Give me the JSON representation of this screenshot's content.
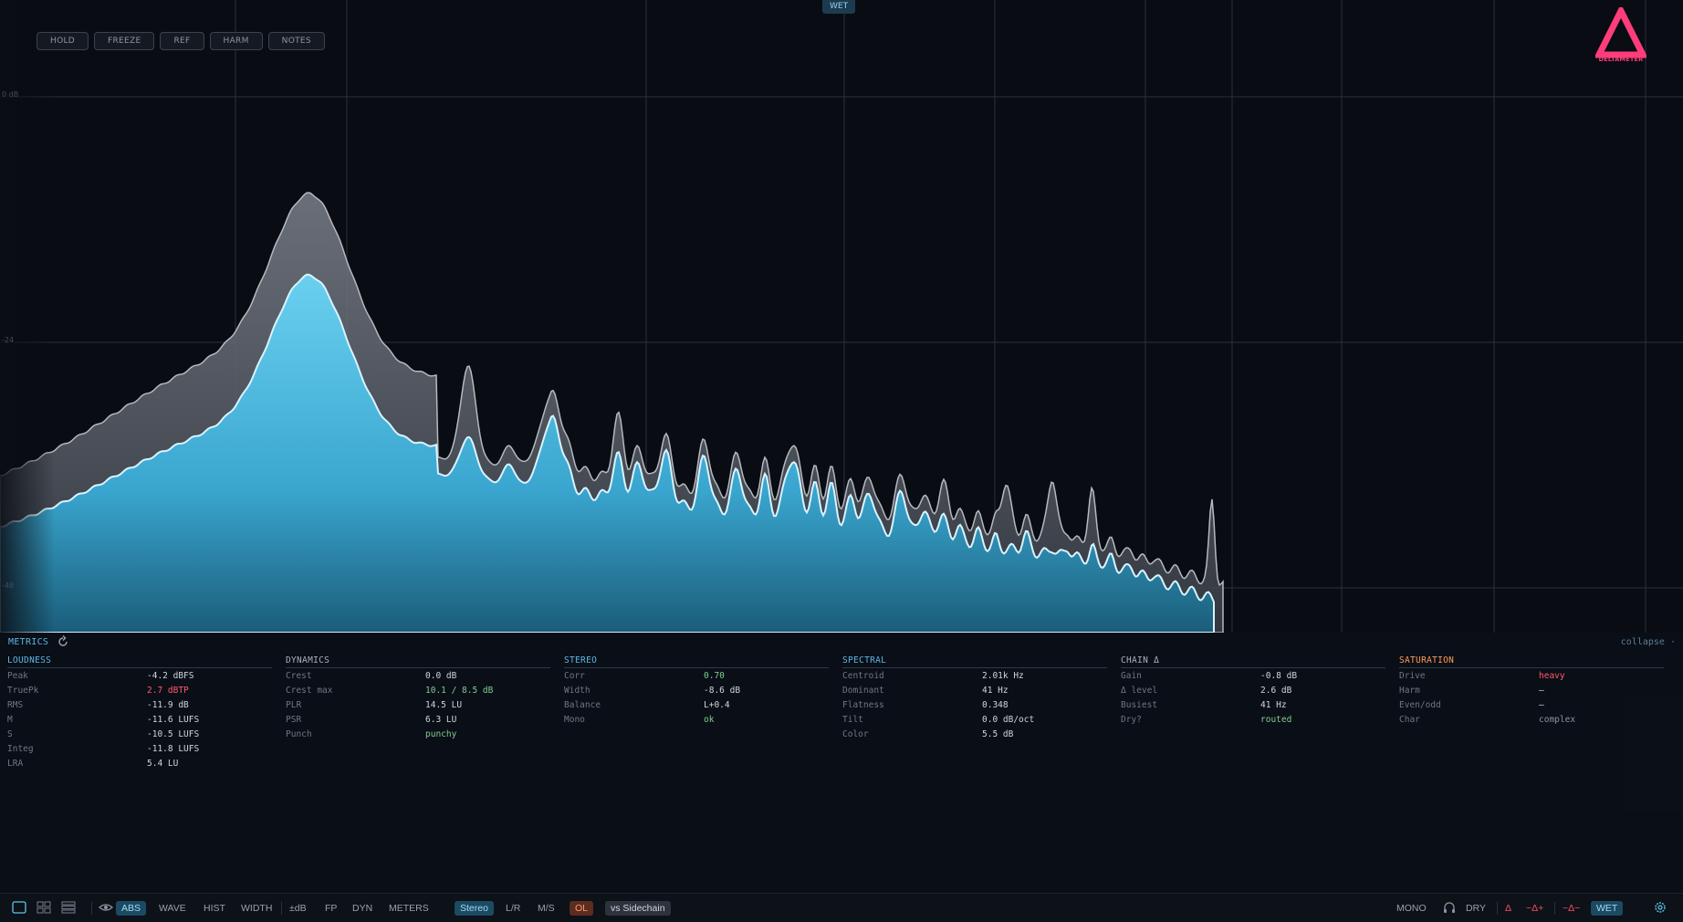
{
  "top_buttons": [
    "HOLD",
    "FREEZE",
    "REF",
    "HARM",
    "NOTES"
  ],
  "wet_badge": "WET",
  "db_labels": [
    "0 dB",
    "-24",
    "-48"
  ],
  "logo_text": "DELTAMETER",
  "metrics": {
    "title": "METRICS",
    "collapse": "collapse ·",
    "sections": [
      {
        "title": "LOUDNESS",
        "color": "#5bb8e6",
        "rows": [
          {
            "k": "Peak",
            "v": "-4.2 dBFS",
            "c": "#d0d6de"
          },
          {
            "k": "TruePk",
            "v": "2.7 dBTP",
            "c": "#ff5a6e"
          },
          {
            "k": "RMS",
            "v": "-11.9 dB",
            "c": "#d0d6de"
          },
          {
            "k": "M",
            "v": "-11.6 LUFS",
            "c": "#d0d6de"
          },
          {
            "k": "S",
            "v": "-10.5 LUFS",
            "c": "#d0d6de"
          },
          {
            "k": "Integ",
            "v": "-11.8 LUFS",
            "c": "#d0d6de"
          },
          {
            "k": "LRA",
            "v": "5.4 LU",
            "c": "#d0d6de"
          }
        ]
      },
      {
        "title": "DYNAMICS",
        "color": "#a8b2bd",
        "rows": [
          {
            "k": "Crest",
            "v": "0.0 dB",
            "c": "#d0d6de"
          },
          {
            "k": "Crest max",
            "v": "10.1 / 8.5 dB",
            "c": "#7fcf8f"
          },
          {
            "k": "PLR",
            "v": "14.5 LU",
            "c": "#d0d6de"
          },
          {
            "k": "PSR",
            "v": "6.3 LU",
            "c": "#d0d6de"
          },
          {
            "k": "Punch",
            "v": "punchy",
            "c": "#7fcf8f"
          }
        ]
      },
      {
        "title": "STEREO",
        "color": "#5bb8e6",
        "rows": [
          {
            "k": "Corr",
            "v": "0.70",
            "c": "#7fcf8f"
          },
          {
            "k": "Width",
            "v": "-8.6 dB",
            "c": "#d0d6de"
          },
          {
            "k": "Balance",
            "v": "L+0.4",
            "c": "#d0d6de"
          },
          {
            "k": "Mono",
            "v": "ok",
            "c": "#7fcf8f"
          }
        ]
      },
      {
        "title": "SPECTRAL",
        "color": "#5bb8e6",
        "rows": [
          {
            "k": "Centroid",
            "v": "2.01k Hz",
            "c": "#d0d6de"
          },
          {
            "k": "Dominant",
            "v": "41 Hz",
            "c": "#d0d6de"
          },
          {
            "k": "Flatness",
            "v": "0.348",
            "c": "#d0d6de"
          },
          {
            "k": "Tilt",
            "v": "0.0 dB/oct",
            "c": "#d0d6de"
          },
          {
            "k": "Color",
            "v": "5.5 dB",
            "c": "#d0d6de"
          }
        ]
      },
      {
        "title": "CHAIN Δ",
        "color": "#a8b2bd",
        "rows": [
          {
            "k": "Gain",
            "v": "-0.8 dB",
            "c": "#d0d6de"
          },
          {
            "k": "Δ level",
            "v": "2.6 dB",
            "c": "#d0d6de"
          },
          {
            "k": "Busiest",
            "v": "41 Hz",
            "c": "#d0d6de"
          },
          {
            "k": "Dry?",
            "v": "routed",
            "c": "#7fcf8f"
          }
        ]
      },
      {
        "title": "SATURATION",
        "color": "#ff9a5a",
        "rows": [
          {
            "k": "Drive",
            "v": "heavy",
            "c": "#ff5a6e"
          },
          {
            "k": "Harm",
            "v": "—",
            "c": "#d0d6de"
          },
          {
            "k": "Even/odd",
            "v": "—",
            "c": "#d0d6de"
          },
          {
            "k": "Char",
            "v": "complex",
            "c": "#8a95a3"
          }
        ]
      }
    ]
  },
  "bottom": {
    "abs": "ABS",
    "wave": "WAVE",
    "hist": "HIST",
    "width": "WIDTH",
    "db": "±dB",
    "fp": "FP",
    "dyn": "DYN",
    "meters": "METERS",
    "stereo": "Stereo",
    "lr": "L/R",
    "ms": "M/S",
    "ol": "OL",
    "sidechain": "vs Sidechain",
    "mono": "MONO",
    "dry": "DRY",
    "delta": "Δ",
    "delta_plus": "~Δ+",
    "delta_minus": "~Δ−",
    "wet": "WET"
  },
  "colors": {
    "accent": "#5bc8ec",
    "dry": "#6a7280",
    "logo": "#ff3d7a"
  }
}
